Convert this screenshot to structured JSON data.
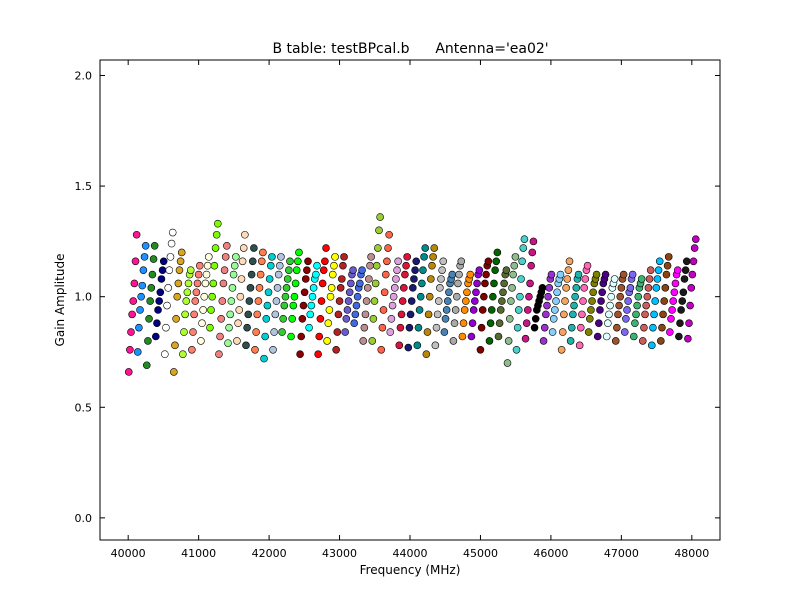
{
  "chart_data": {
    "type": "scatter",
    "title_left": "B table: testBPcal.b",
    "title_right": "Antenna='ea02'",
    "xlabel": "Frequency (MHz)",
    "ylabel": "Gain Amplitude",
    "xlim": [
      39600,
      48400
    ],
    "ylim": [
      -0.1,
      2.07
    ],
    "xticks": [
      40000,
      41000,
      42000,
      43000,
      44000,
      45000,
      46000,
      47000,
      48000
    ],
    "xtick_labels": [
      "40000",
      "41000",
      "42000",
      "43000",
      "44000",
      "45000",
      "46000",
      "47000",
      "48000"
    ],
    "yticks": [
      0.0,
      0.5,
      1.0,
      1.5,
      2.0
    ],
    "ytick_labels": [
      "0.0",
      "0.5",
      "1.0",
      "1.5",
      "2.0"
    ],
    "grid": false,
    "legend": "none",
    "marker": "circle",
    "spw_start_mhz": 40000,
    "spw_width_mhz": 128,
    "spw_count": 63,
    "channels_per_spw": 8,
    "series": [
      {
        "color": "#ff1493",
        "values": [
          0.66,
          0.76,
          0.84,
          0.92,
          0.98,
          1.06,
          1.16,
          1.28
        ]
      },
      {
        "color": "#1e90ff",
        "values": [
          0.75,
          0.86,
          0.94,
          1.0,
          1.05,
          1.12,
          1.18,
          1.23
        ]
      },
      {
        "color": "#228b22",
        "values": [
          0.69,
          0.8,
          0.9,
          0.98,
          1.04,
          1.1,
          1.17,
          1.23
        ]
      },
      {
        "color": "#000080",
        "values": [
          0.82,
          0.88,
          0.94,
          0.98,
          1.02,
          1.08,
          1.12,
          1.16
        ]
      },
      {
        "color": "#ffffff",
        "values": [
          0.74,
          0.86,
          0.96,
          1.04,
          1.12,
          1.18,
          1.24,
          1.29
        ]
      },
      {
        "color": "#daa520",
        "values": [
          0.66,
          0.78,
          0.9,
          1.0,
          1.06,
          1.12,
          1.16,
          1.2
        ]
      },
      {
        "color": "#adff2f",
        "values": [
          0.74,
          0.84,
          0.92,
          0.98,
          1.02,
          1.06,
          1.1,
          1.12
        ]
      },
      {
        "color": "#fa8072",
        "values": [
          0.76,
          0.84,
          0.92,
          0.98,
          1.02,
          1.06,
          1.1,
          1.14
        ]
      },
      {
        "color": "#ffffe0",
        "values": [
          0.8,
          0.88,
          0.94,
          1.0,
          1.06,
          1.1,
          1.14,
          1.18
        ]
      },
      {
        "color": "#7cfc00",
        "values": [
          0.86,
          0.94,
          1.0,
          1.06,
          1.14,
          1.22,
          1.28,
          1.33
        ]
      },
      {
        "color": "#f08080",
        "values": [
          0.74,
          0.82,
          0.9,
          0.98,
          1.06,
          1.12,
          1.18,
          1.23
        ]
      },
      {
        "color": "#98fb98",
        "values": [
          0.79,
          0.86,
          0.92,
          0.98,
          1.04,
          1.1,
          1.14,
          1.18
        ]
      },
      {
        "color": "#ffdab9",
        "values": [
          0.8,
          0.88,
          0.94,
          1.0,
          1.08,
          1.16,
          1.22,
          1.28
        ]
      },
      {
        "color": "#2f4f4f",
        "values": [
          0.78,
          0.86,
          0.92,
          0.98,
          1.04,
          1.1,
          1.16,
          1.22
        ]
      },
      {
        "color": "#ff7f50",
        "values": [
          0.76,
          0.84,
          0.92,
          0.98,
          1.04,
          1.1,
          1.16,
          1.2
        ]
      },
      {
        "color": "#00ced1",
        "values": [
          0.72,
          0.82,
          0.9,
          0.96,
          1.02,
          1.08,
          1.14,
          1.18
        ]
      },
      {
        "color": "#b0c4de",
        "values": [
          0.76,
          0.84,
          0.92,
          0.98,
          1.04,
          1.1,
          1.14,
          1.18
        ]
      },
      {
        "color": "#32cd32",
        "values": [
          0.84,
          0.9,
          0.96,
          1.0,
          1.04,
          1.08,
          1.12,
          1.16
        ]
      },
      {
        "color": "#00ff00",
        "values": [
          0.82,
          0.9,
          0.96,
          1.0,
          1.06,
          1.12,
          1.16,
          1.2
        ]
      },
      {
        "color": "#8b0000",
        "values": [
          0.74,
          0.82,
          0.9,
          0.96,
          1.02,
          1.08,
          1.12,
          1.16
        ]
      },
      {
        "color": "#00ffff",
        "values": [
          0.86,
          0.92,
          0.96,
          1.0,
          1.04,
          1.08,
          1.1,
          1.14
        ]
      },
      {
        "color": "#ff0000",
        "values": [
          0.74,
          0.82,
          0.9,
          0.98,
          1.06,
          1.12,
          1.16,
          1.22
        ]
      },
      {
        "color": "#ffff00",
        "values": [
          0.8,
          0.88,
          0.94,
          1.0,
          1.04,
          1.1,
          1.14,
          1.18
        ]
      },
      {
        "color": "#b22222",
        "values": [
          0.76,
          0.84,
          0.92,
          0.98,
          1.04,
          1.08,
          1.14,
          1.18
        ]
      },
      {
        "color": "#6a5acd",
        "values": [
          0.84,
          0.9,
          0.94,
          0.98,
          1.02,
          1.06,
          1.1,
          1.12
        ]
      },
      {
        "color": "#4169e1",
        "values": [
          0.88,
          0.92,
          0.96,
          1.0,
          1.04,
          1.06,
          1.1,
          1.12
        ]
      },
      {
        "color": "#bc8f8f",
        "values": [
          0.8,
          0.86,
          0.92,
          0.98,
          1.04,
          1.08,
          1.14,
          1.18
        ]
      },
      {
        "color": "#9acd32",
        "values": [
          0.8,
          0.9,
          0.98,
          1.06,
          1.14,
          1.22,
          1.3,
          1.36
        ]
      },
      {
        "color": "#ff6347",
        "values": [
          0.76,
          0.86,
          0.94,
          1.02,
          1.1,
          1.16,
          1.22,
          1.28
        ]
      },
      {
        "color": "#dda0dd",
        "values": [
          0.84,
          0.9,
          0.96,
          1.0,
          1.04,
          1.08,
          1.12,
          1.16
        ]
      },
      {
        "color": "#dc143c",
        "values": [
          0.78,
          0.86,
          0.92,
          0.98,
          1.04,
          1.1,
          1.14,
          1.18
        ]
      },
      {
        "color": "#191970",
        "values": [
          0.77,
          0.86,
          0.92,
          0.98,
          1.04,
          1.08,
          1.12,
          1.16
        ]
      },
      {
        "color": "#008b8b",
        "values": [
          0.78,
          0.86,
          0.94,
          1.0,
          1.06,
          1.12,
          1.18,
          1.22
        ]
      },
      {
        "color": "#b8860b",
        "values": [
          0.74,
          0.84,
          0.92,
          1.0,
          1.08,
          1.14,
          1.18,
          1.22
        ]
      },
      {
        "color": "#c0c0c0",
        "values": [
          0.78,
          0.86,
          0.92,
          0.98,
          1.04,
          1.08,
          1.12,
          1.16
        ]
      },
      {
        "color": "#4682b4",
        "values": [
          0.84,
          0.9,
          0.94,
          0.98,
          1.02,
          1.06,
          1.08,
          1.1
        ]
      },
      {
        "color": "#a9a9a9",
        "values": [
          0.8,
          0.88,
          0.94,
          1.0,
          1.06,
          1.1,
          1.14,
          1.16
        ]
      },
      {
        "color": "#ff8c00",
        "values": [
          0.82,
          0.88,
          0.94,
          0.98,
          1.02,
          1.06,
          1.08,
          1.1
        ]
      },
      {
        "color": "#9400d3",
        "values": [
          0.82,
          0.88,
          0.94,
          0.98,
          1.02,
          1.06,
          1.1,
          1.12
        ]
      },
      {
        "color": "#800000",
        "values": [
          0.76,
          0.86,
          0.94,
          1.0,
          1.06,
          1.1,
          1.14,
          1.16
        ]
      },
      {
        "color": "#006400",
        "values": [
          0.8,
          0.88,
          0.94,
          1.0,
          1.06,
          1.12,
          1.16,
          1.2
        ]
      },
      {
        "color": "#556b2f",
        "values": [
          0.82,
          0.88,
          0.94,
          0.98,
          1.02,
          1.06,
          1.1,
          1.12
        ]
      },
      {
        "color": "#8fbc8f",
        "values": [
          0.7,
          0.8,
          0.9,
          0.98,
          1.04,
          1.1,
          1.14,
          1.18
        ]
      },
      {
        "color": "#48d1cc",
        "values": [
          0.76,
          0.86,
          0.94,
          1.0,
          1.08,
          1.16,
          1.22,
          1.26
        ]
      },
      {
        "color": "#c71585",
        "values": [
          0.81,
          0.88,
          0.94,
          1.0,
          1.06,
          1.14,
          1.2,
          1.25
        ]
      },
      {
        "color": "#000000",
        "values": [
          0.86,
          0.9,
          0.94,
          0.96,
          0.98,
          1.0,
          1.02,
          1.04
        ]
      },
      {
        "color": "#9932cc",
        "values": [
          0.8,
          0.86,
          0.92,
          0.96,
          1.0,
          1.04,
          1.08,
          1.1
        ]
      },
      {
        "color": "#87cefa",
        "values": [
          0.84,
          0.9,
          0.94,
          0.98,
          1.02,
          1.06,
          1.08,
          1.1
        ]
      },
      {
        "color": "#f4a460",
        "values": [
          0.76,
          0.84,
          0.92,
          0.98,
          1.04,
          1.08,
          1.12,
          1.16
        ]
      },
      {
        "color": "#20b2aa",
        "values": [
          0.8,
          0.86,
          0.92,
          0.96,
          1.0,
          1.04,
          1.08,
          1.1
        ]
      },
      {
        "color": "#ff69b4",
        "values": [
          0.78,
          0.86,
          0.92,
          0.98,
          1.04,
          1.08,
          1.12,
          1.14
        ]
      },
      {
        "color": "#808000",
        "values": [
          0.84,
          0.9,
          0.94,
          0.98,
          1.02,
          1.06,
          1.08,
          1.1
        ]
      },
      {
        "color": "#4b0082",
        "values": [
          0.82,
          0.88,
          0.94,
          0.98,
          1.02,
          1.06,
          1.08,
          1.1
        ]
      },
      {
        "color": "#e0ffff",
        "values": [
          0.82,
          0.88,
          0.92,
          0.96,
          1.0,
          1.04,
          1.06,
          1.08
        ]
      },
      {
        "color": "#a0522d",
        "values": [
          0.8,
          0.86,
          0.92,
          0.96,
          1.0,
          1.04,
          1.08,
          1.1
        ]
      },
      {
        "color": "#7b68ee",
        "values": [
          0.84,
          0.9,
          0.94,
          0.98,
          1.02,
          1.04,
          1.08,
          1.1
        ]
      },
      {
        "color": "#3cb371",
        "values": [
          0.82,
          0.88,
          0.92,
          0.96,
          1.0,
          1.04,
          1.06,
          1.08
        ]
      },
      {
        "color": "#cd5c5c",
        "values": [
          0.8,
          0.86,
          0.92,
          0.96,
          1.0,
          1.04,
          1.08,
          1.12
        ]
      },
      {
        "color": "#00bfff",
        "values": [
          0.78,
          0.86,
          0.92,
          0.98,
          1.04,
          1.08,
          1.12,
          1.16
        ]
      },
      {
        "color": "#8b4513",
        "values": [
          0.8,
          0.86,
          0.92,
          0.98,
          1.04,
          1.1,
          1.14,
          1.18
        ]
      },
      {
        "color": "#ff00ff",
        "values": [
          0.84,
          0.9,
          0.94,
          0.98,
          1.02,
          1.06,
          1.1,
          1.12
        ]
      },
      {
        "color": "#1a1a1a",
        "values": [
          0.82,
          0.88,
          0.94,
          0.98,
          1.02,
          1.08,
          1.12,
          1.16
        ]
      },
      {
        "color": "#c000c0",
        "values": [
          0.81,
          0.88,
          0.96,
          1.04,
          1.1,
          1.16,
          1.22,
          1.26
        ]
      }
    ]
  }
}
